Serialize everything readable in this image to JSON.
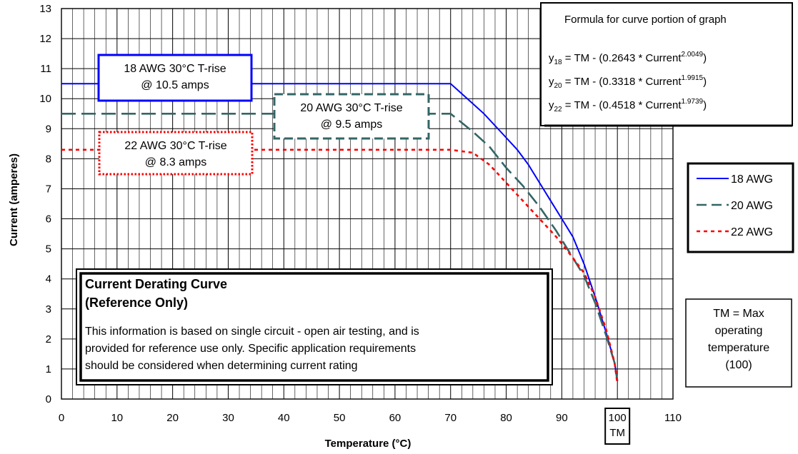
{
  "chart_data": {
    "type": "line",
    "xlabel": "Temperature (°C)",
    "ylabel": "Current (amperes)",
    "xlim": [
      0,
      110
    ],
    "ylim": [
      0,
      13
    ],
    "x_ticks": [
      "0",
      "10",
      "20",
      "30",
      "40",
      "50",
      "60",
      "70",
      "80",
      "90",
      "100",
      "110"
    ],
    "y_ticks": [
      "0",
      "1",
      "2",
      "3",
      "4",
      "5",
      "6",
      "7",
      "8",
      "9",
      "10",
      "11",
      "12",
      "13"
    ],
    "x_tick_extra": "TM",
    "grid": true,
    "legend_position": "right",
    "series": [
      {
        "name": "18 AWG",
        "color": "#0000ff",
        "style": "solid",
        "points": [
          [
            0,
            10.5
          ],
          [
            70,
            10.5
          ],
          [
            73,
            10
          ],
          [
            76,
            9.5
          ],
          [
            79,
            8.9
          ],
          [
            82,
            8.3
          ],
          [
            84,
            7.8
          ],
          [
            86,
            7.2
          ],
          [
            88,
            6.6
          ],
          [
            90,
            6.0
          ],
          [
            92,
            5.4
          ],
          [
            94,
            4.5
          ],
          [
            96,
            3.4
          ],
          [
            98,
            2.2
          ],
          [
            99.5,
            1.2
          ],
          [
            100,
            0.6
          ]
        ]
      },
      {
        "name": "20 AWG",
        "color": "#336666",
        "style": "dashed",
        "points": [
          [
            0,
            9.5
          ],
          [
            70,
            9.5
          ],
          [
            72,
            9.2
          ],
          [
            74,
            8.9
          ],
          [
            77,
            8.4
          ],
          [
            80,
            7.7
          ],
          [
            83,
            7.1
          ],
          [
            86,
            6.4
          ],
          [
            89,
            5.6
          ],
          [
            91,
            5.0
          ],
          [
            94,
            4.1
          ],
          [
            96,
            3.2
          ],
          [
            98,
            2.1
          ],
          [
            99.5,
            1.2
          ],
          [
            100,
            0.6
          ]
        ]
      },
      {
        "name": "22 AWG",
        "color": "#ff0000",
        "style": "dotted",
        "points": [
          [
            0,
            8.3
          ],
          [
            70,
            8.3
          ],
          [
            74,
            8.2
          ],
          [
            77,
            7.8
          ],
          [
            80,
            7.2
          ],
          [
            83,
            6.6
          ],
          [
            86,
            6.0
          ],
          [
            89,
            5.4
          ],
          [
            92,
            4.7
          ],
          [
            94,
            4.2
          ],
          [
            96,
            3.4
          ],
          [
            98,
            2.3
          ],
          [
            99.5,
            1.2
          ],
          [
            100,
            0.5
          ]
        ]
      }
    ],
    "annotations": [
      {
        "lines": [
          "18 AWG 30°C T-rise",
          "@ 10.5 amps"
        ],
        "color": "#0000ff",
        "border": "solid"
      },
      {
        "lines": [
          "20 AWG 30°C T-rise",
          "@ 9.5 amps"
        ],
        "color": "#336666",
        "border": "dashed"
      },
      {
        "lines": [
          "22 AWG 30°C T-rise",
          "@ 8.3 amps"
        ],
        "color": "#ff0000",
        "border": "dotted"
      }
    ],
    "formula_box": {
      "title": "Formula for curve portion of graph",
      "formulas": [
        {
          "y": "y",
          "sub": "18",
          "expr": " = TM - (0.2643 * Current",
          "exp": "2.0049",
          "close": ")"
        },
        {
          "y": "y",
          "sub": "20",
          "expr": " = TM - (0.3318 * Current",
          "exp": "1.9915",
          "close": ")"
        },
        {
          "y": "y",
          "sub": "22",
          "expr": " = TM - (0.4518 * Current",
          "exp": "1.9739",
          "close": ")"
        }
      ]
    },
    "info_box": {
      "title_lines": [
        "Current Derating Curve",
        "(Reference Only)"
      ],
      "body_lines": [
        "This information is based on single circuit - open air testing, and is",
        "provided for reference use only.  Specific application requirements",
        "should be considered when determining current rating"
      ]
    },
    "tm_note": [
      "TM = Max",
      "operating",
      "temperature",
      "(100)"
    ]
  }
}
